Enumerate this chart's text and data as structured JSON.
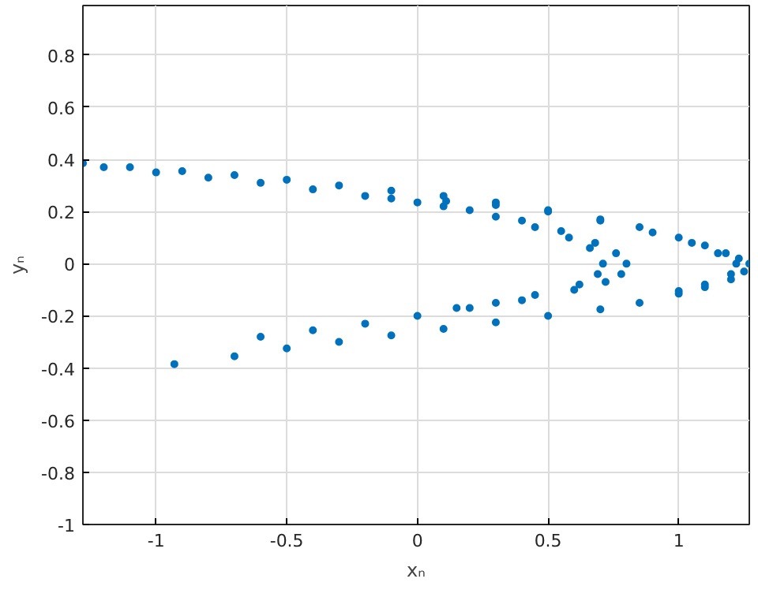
{
  "chart_data": {
    "type": "scatter",
    "xlabel": "xₙ",
    "ylabel": "yₙ",
    "xlim": [
      -1.28,
      1.27
    ],
    "ylim": [
      -1,
      0.99
    ],
    "xticks": [
      -1,
      -0.5,
      0,
      0.5,
      1
    ],
    "yticks": [
      -1,
      -0.8,
      -0.6,
      -0.4,
      -0.2,
      0,
      0.2,
      0.4,
      0.6,
      0.8
    ],
    "grid": true,
    "marker": "circle",
    "series": [
      {
        "color": "#0072bd",
        "x": [
          -1.28,
          -1.1,
          -0.9,
          -0.7,
          -0.5,
          -0.3,
          -0.1,
          0.1,
          0.3,
          0.5,
          0.7,
          0.85,
          1.0,
          1.1,
          1.18,
          1.23,
          1.27,
          1.25,
          1.2,
          1.1,
          1.0,
          0.85,
          0.7,
          0.5,
          0.3,
          0.1,
          -0.1,
          -0.3,
          -0.5,
          -0.7,
          -0.93,
          -1.2,
          -1.0,
          -0.8,
          -0.6,
          -0.4,
          -0.2,
          0,
          0.2,
          0.4,
          0.55,
          0.68,
          0.76,
          0.8,
          0.78,
          0.72,
          0.6,
          0.4,
          0.2,
          0,
          -0.2,
          -0.4,
          -0.6,
          -0.1,
          0.1,
          0.3,
          0.45,
          0.58,
          0.66,
          0.71,
          0.69,
          0.62,
          0.45,
          0.3,
          0.15,
          0.11,
          0.3,
          0.5,
          0.7,
          0.9,
          1.05,
          1.15,
          1.22,
          1.2,
          1.1,
          1.0
        ],
        "values": [
          0.385,
          0.37,
          0.355,
          0.34,
          0.322,
          0.3,
          0.28,
          0.26,
          0.235,
          0.205,
          0.17,
          0.14,
          0.1,
          0.07,
          0.04,
          0.02,
          0.0,
          -0.03,
          -0.06,
          -0.09,
          -0.115,
          -0.15,
          -0.175,
          -0.2,
          -0.225,
          -0.25,
          -0.275,
          -0.3,
          -0.325,
          -0.355,
          -0.385,
          0.37,
          0.35,
          0.33,
          0.31,
          0.285,
          0.26,
          0.235,
          0.205,
          0.165,
          0.125,
          0.08,
          0.04,
          0.0,
          -0.04,
          -0.07,
          -0.1,
          -0.14,
          -0.17,
          -0.2,
          -0.23,
          -0.255,
          -0.28,
          0.25,
          0.22,
          0.18,
          0.14,
          0.1,
          0.06,
          0.0,
          -0.04,
          -0.08,
          -0.12,
          -0.15,
          -0.17,
          0.24,
          0.225,
          0.2,
          0.165,
          0.12,
          0.08,
          0.04,
          0.0,
          -0.04,
          -0.08,
          -0.105
        ]
      }
    ]
  }
}
